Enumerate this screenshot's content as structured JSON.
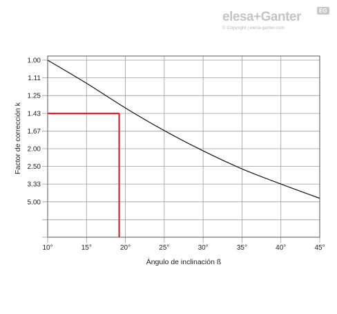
{
  "brand": {
    "logo_text": "elesa+Ganter",
    "badge": "EG",
    "copyright": "© Copyright | elesa-ganter.com"
  },
  "colors": {
    "curve": "#111111",
    "highlight": "#e41f26",
    "grid": "#9a9a9a",
    "logo": "#c5c5c5"
  },
  "chart_data": {
    "type": "line",
    "xlabel": "Ángulo de inclinación ß",
    "ylabel": "Factor de corrección k",
    "xlim": [
      10,
      45
    ],
    "x_ticks": [
      10,
      15,
      20,
      25,
      30,
      35,
      40,
      45
    ],
    "x_tick_labels": [
      "10°",
      "15°",
      "20°",
      "25°",
      "30°",
      "35°",
      "40°",
      "45°"
    ],
    "y_ticks": [
      1.0,
      1.11,
      1.25,
      1.43,
      1.67,
      2.0,
      2.5,
      3.33,
      5.0
    ],
    "y_tick_labels": [
      "1.00",
      "1.11",
      "1.25",
      "1.43",
      "1.67",
      "2.00",
      "2.50",
      "3.33",
      "5.00"
    ],
    "y_scale": "reciprocal",
    "grid": true,
    "series": [
      {
        "x": [
          10,
          15,
          20,
          25,
          30,
          35,
          40,
          45
        ],
        "y": [
          1.0,
          1.15,
          1.37,
          1.66,
          2.05,
          2.59,
          3.33,
          4.55
        ]
      }
    ],
    "highlight": {
      "x": 19.2,
      "y": 1.43
    }
  }
}
